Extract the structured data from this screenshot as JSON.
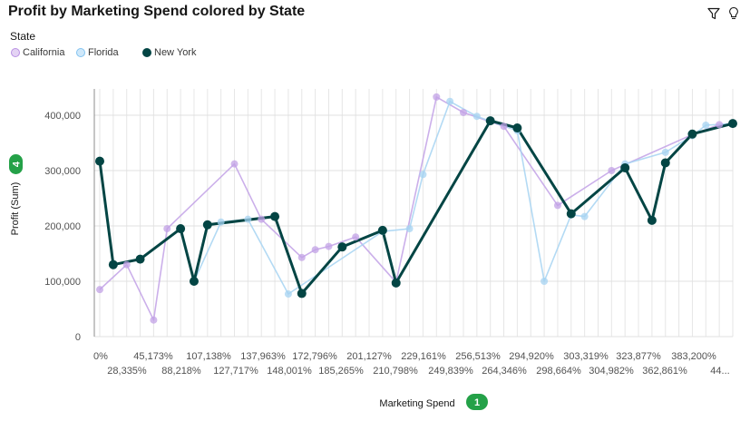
{
  "header": {
    "title": "Profit by Marketing Spend colored by State",
    "filter_icon": "filter-icon",
    "insight_icon": "lightbulb-icon"
  },
  "legend": {
    "title": "State",
    "items": [
      {
        "label": "California",
        "color": "#b990e3",
        "fill": "#e4d3f4"
      },
      {
        "label": "Florida",
        "color": "#82c3f0",
        "fill": "#cfe8fa"
      },
      {
        "label": "New York",
        "color": "#034544",
        "fill": "#034544"
      }
    ]
  },
  "badges": {
    "y_count": "4",
    "x_count": "1",
    "color": "#24a148"
  },
  "chart_data": {
    "type": "line",
    "title": "Profit by Marketing Spend colored by State",
    "xlabel": "Marketing Spend",
    "ylabel": "Profit (Sum)",
    "ylim": [
      0,
      430000
    ],
    "yticks": [
      0,
      100000,
      200000,
      300000,
      400000
    ],
    "ytick_labels": [
      "0",
      "100,000",
      "200,000",
      "300,000",
      "400,000"
    ],
    "xtick_labels_row1": [
      "0%",
      "45,173%",
      "107,138%",
      "137,963%",
      "172,796%",
      "201,127%",
      "229,161%",
      "256,513%",
      "294,920%",
      "303,319%",
      "323,877%",
      "383,200%"
    ],
    "xtick_labels_row2": [
      "28,335%",
      "88,218%",
      "127,717%",
      "148,001%",
      "185,265%",
      "210,798%",
      "249,839%",
      "264,346%",
      "298,664%",
      "304,982%",
      "362,861%",
      "44..."
    ],
    "grid": true,
    "legend_position": "top-left",
    "series": [
      {
        "name": "California",
        "color": "#c2a1e6",
        "points": [
          [
            0,
            85000
          ],
          [
            2,
            130000
          ],
          [
            4,
            30000
          ],
          [
            5,
            195000
          ],
          [
            10,
            312000
          ],
          [
            12,
            212000
          ],
          [
            15,
            143000
          ],
          [
            16,
            157000
          ],
          [
            17,
            163000
          ],
          [
            19,
            180000
          ],
          [
            22,
            98000
          ],
          [
            25,
            433000
          ],
          [
            27,
            405000
          ],
          [
            30,
            380000
          ],
          [
            34,
            237000
          ],
          [
            38,
            300000
          ],
          [
            44,
            365000
          ],
          [
            46,
            383000
          ],
          [
            47,
            384000
          ]
        ]
      },
      {
        "name": "Florida",
        "color": "#a6d3f2",
        "points": [
          [
            7,
            100000
          ],
          [
            9,
            207000
          ],
          [
            11,
            212000
          ],
          [
            14,
            77000
          ],
          [
            21,
            190000
          ],
          [
            23,
            195000
          ],
          [
            24,
            293000
          ],
          [
            26,
            425000
          ],
          [
            28,
            398000
          ],
          [
            31,
            372000
          ],
          [
            33,
            100000
          ],
          [
            35,
            220000
          ],
          [
            36,
            217000
          ],
          [
            39,
            312000
          ],
          [
            42,
            333000
          ],
          [
            44,
            363000
          ],
          [
            45,
            382000
          ],
          [
            47,
            385000
          ]
        ]
      },
      {
        "name": "New York",
        "color": "#034544",
        "points": [
          [
            0,
            317000
          ],
          [
            1,
            130000
          ],
          [
            3,
            140000
          ],
          [
            6,
            195000
          ],
          [
            7,
            100000
          ],
          [
            8,
            202000
          ],
          [
            13,
            217000
          ],
          [
            15,
            78000
          ],
          [
            18,
            162000
          ],
          [
            21,
            192000
          ],
          [
            22,
            97000
          ],
          [
            29,
            390000
          ],
          [
            31,
            377000
          ],
          [
            35,
            222000
          ],
          [
            39,
            305000
          ],
          [
            41,
            210000
          ],
          [
            42,
            314000
          ],
          [
            44,
            366000
          ],
          [
            47,
            385000
          ]
        ]
      }
    ]
  }
}
